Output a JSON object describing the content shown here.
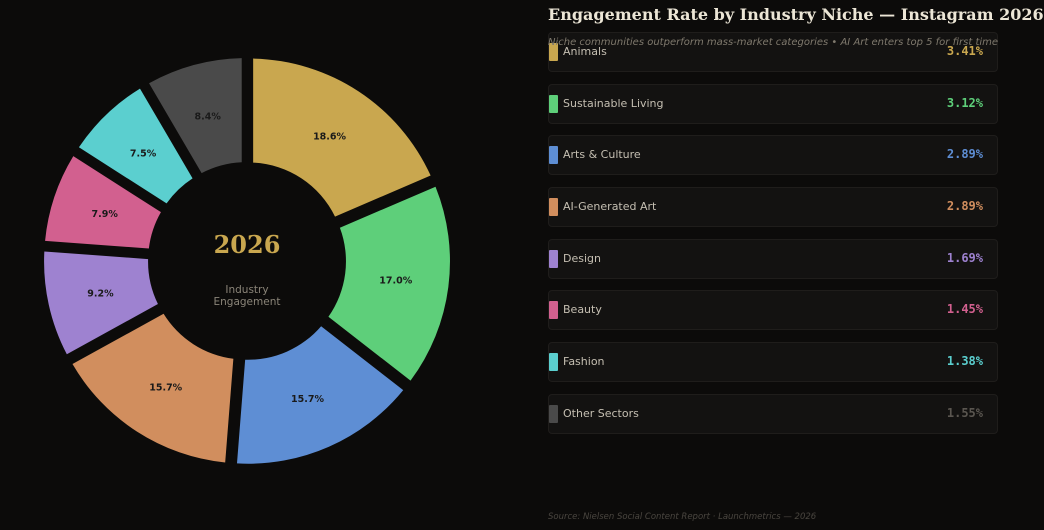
{
  "header": {
    "title": "Engagement Rate by Industry Niche — Instagram 2026",
    "subtitle": "Niche communities outperform mass-market categories  •  AI Art enters top 5 for first time"
  },
  "center": {
    "year": "2026",
    "line1": "Industry",
    "line2": "Engagement"
  },
  "footer": {
    "source": "Source: Nielsen Social Content Report · Launchmetrics — 2026"
  },
  "chart_data": {
    "type": "pie",
    "variant": "donut",
    "title": "Engagement Rate by Industry Niche — Instagram 2026",
    "categories": [
      "Animals",
      "Sustainable Living",
      "Arts & Culture",
      "AI-Generated Art",
      "Design",
      "Beauty",
      "Fashion",
      "Other Sectors"
    ],
    "values": [
      3.41,
      3.12,
      2.89,
      2.89,
      1.69,
      1.45,
      1.38,
      1.55
    ],
    "value_labels": [
      "3.41%",
      "3.12%",
      "2.89%",
      "2.89%",
      "1.69%",
      "1.45%",
      "1.38%",
      "1.55%"
    ],
    "slice_labels": [
      "18.6%",
      "17.0%",
      "15.7%",
      "15.7%",
      "9.2%",
      "7.9%",
      "7.5%",
      "8.4%"
    ],
    "colors": [
      "#c9a74f",
      "#5ecf7a",
      "#5e8ed4",
      "#d18e5e",
      "#9e82d0",
      "#d2608f",
      "#5bcfcf",
      "#4a4a4a"
    ],
    "legend_placement": "right"
  }
}
